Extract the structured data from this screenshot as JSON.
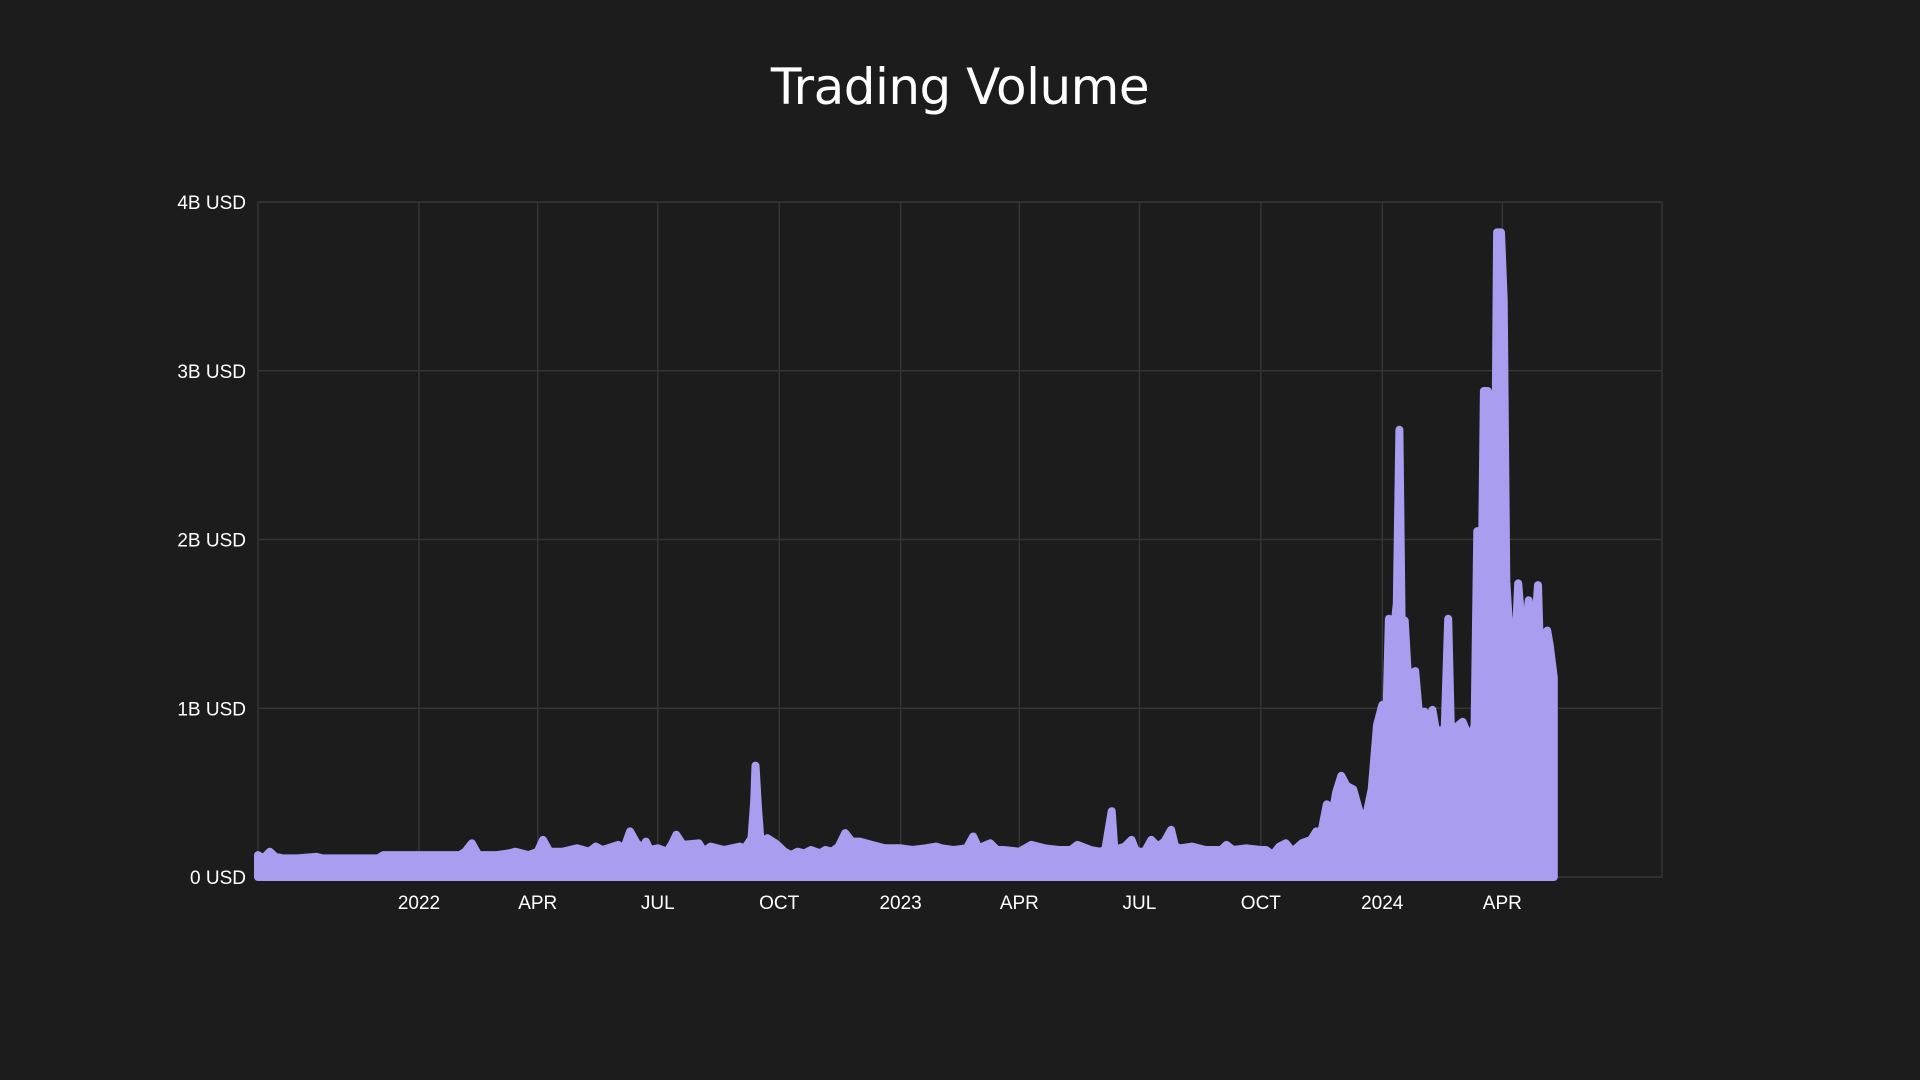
{
  "chart_data": {
    "type": "area",
    "title": "Trading Volume",
    "xlabel": "",
    "ylabel": "",
    "xlim": [
      "2021-09-01",
      "2024-07-31"
    ],
    "ylim": [
      0,
      4000000000
    ],
    "grid": true,
    "legend": "none",
    "y_ticks": [
      {
        "value": 0,
        "label": "0 USD"
      },
      {
        "value": 1000000000,
        "label": "1B USD"
      },
      {
        "value": 2000000000,
        "label": "2B USD"
      },
      {
        "value": 3000000000,
        "label": "3B USD"
      },
      {
        "value": 4000000000,
        "label": "4B USD"
      }
    ],
    "x_ticks": [
      {
        "value": "2022-01-01",
        "label": "2022"
      },
      {
        "value": "2022-04-01",
        "label": "APR"
      },
      {
        "value": "2022-07-01",
        "label": "JUL"
      },
      {
        "value": "2022-10-01",
        "label": "OCT"
      },
      {
        "value": "2023-01-01",
        "label": "2023"
      },
      {
        "value": "2023-04-01",
        "label": "APR"
      },
      {
        "value": "2023-07-01",
        "label": "JUL"
      },
      {
        "value": "2023-10-01",
        "label": "OCT"
      },
      {
        "value": "2024-01-01",
        "label": "2024"
      },
      {
        "value": "2024-04-01",
        "label": "APR"
      }
    ],
    "series": [
      {
        "color": "#a99df0",
        "points": [
          [
            "2021-09-01",
            130000000
          ],
          [
            "2021-09-05",
            110000000
          ],
          [
            "2021-09-10",
            150000000
          ],
          [
            "2021-09-14",
            120000000
          ],
          [
            "2021-09-20",
            110000000
          ],
          [
            "2021-10-01",
            110000000
          ],
          [
            "2021-10-15",
            120000000
          ],
          [
            "2021-10-20",
            110000000
          ],
          [
            "2021-11-01",
            110000000
          ],
          [
            "2021-11-15",
            110000000
          ],
          [
            "2021-12-01",
            110000000
          ],
          [
            "2021-12-05",
            130000000
          ],
          [
            "2021-12-20",
            130000000
          ],
          [
            "2022-01-01",
            130000000
          ],
          [
            "2022-01-20",
            130000000
          ],
          [
            "2022-02-01",
            130000000
          ],
          [
            "2022-02-05",
            150000000
          ],
          [
            "2022-02-10",
            200000000
          ],
          [
            "2022-02-15",
            130000000
          ],
          [
            "2022-03-01",
            130000000
          ],
          [
            "2022-03-10",
            140000000
          ],
          [
            "2022-03-15",
            150000000
          ],
          [
            "2022-03-25",
            130000000
          ],
          [
            "2022-04-01",
            150000000
          ],
          [
            "2022-04-05",
            220000000
          ],
          [
            "2022-04-10",
            150000000
          ],
          [
            "2022-04-20",
            150000000
          ],
          [
            "2022-05-01",
            170000000
          ],
          [
            "2022-05-10",
            150000000
          ],
          [
            "2022-05-15",
            180000000
          ],
          [
            "2022-05-20",
            160000000
          ],
          [
            "2022-06-01",
            190000000
          ],
          [
            "2022-06-05",
            160000000
          ],
          [
            "2022-06-10",
            270000000
          ],
          [
            "2022-06-15",
            200000000
          ],
          [
            "2022-06-20",
            170000000
          ],
          [
            "2022-06-22",
            210000000
          ],
          [
            "2022-06-25",
            160000000
          ],
          [
            "2022-07-01",
            170000000
          ],
          [
            "2022-07-08",
            150000000
          ],
          [
            "2022-07-12",
            200000000
          ],
          [
            "2022-07-15",
            250000000
          ],
          [
            "2022-07-20",
            190000000
          ],
          [
            "2022-08-01",
            200000000
          ],
          [
            "2022-08-05",
            150000000
          ],
          [
            "2022-08-10",
            180000000
          ],
          [
            "2022-08-20",
            160000000
          ],
          [
            "2022-09-01",
            180000000
          ],
          [
            "2022-09-05",
            170000000
          ],
          [
            "2022-09-10",
            230000000
          ],
          [
            "2022-09-12",
            450000000
          ],
          [
            "2022-09-13",
            660000000
          ],
          [
            "2022-09-15",
            400000000
          ],
          [
            "2022-09-17",
            200000000
          ],
          [
            "2022-09-22",
            230000000
          ],
          [
            "2022-09-28",
            200000000
          ],
          [
            "2022-10-01",
            180000000
          ],
          [
            "2022-10-05",
            150000000
          ],
          [
            "2022-10-10",
            130000000
          ],
          [
            "2022-10-15",
            150000000
          ],
          [
            "2022-10-20",
            140000000
          ],
          [
            "2022-10-25",
            160000000
          ],
          [
            "2022-11-01",
            140000000
          ],
          [
            "2022-11-05",
            160000000
          ],
          [
            "2022-11-10",
            150000000
          ],
          [
            "2022-11-15",
            180000000
          ],
          [
            "2022-11-20",
            260000000
          ],
          [
            "2022-11-25",
            210000000
          ],
          [
            "2022-12-01",
            210000000
          ],
          [
            "2022-12-10",
            190000000
          ],
          [
            "2022-12-20",
            170000000
          ],
          [
            "2023-01-01",
            170000000
          ],
          [
            "2023-01-10",
            160000000
          ],
          [
            "2023-01-20",
            170000000
          ],
          [
            "2023-01-28",
            180000000
          ],
          [
            "2023-02-01",
            170000000
          ],
          [
            "2023-02-10",
            160000000
          ],
          [
            "2023-02-20",
            170000000
          ],
          [
            "2023-02-25",
            240000000
          ],
          [
            "2023-03-01",
            170000000
          ],
          [
            "2023-03-10",
            200000000
          ],
          [
            "2023-03-15",
            160000000
          ],
          [
            "2023-03-20",
            160000000
          ],
          [
            "2023-04-01",
            150000000
          ],
          [
            "2023-04-10",
            190000000
          ],
          [
            "2023-04-20",
            170000000
          ],
          [
            "2023-05-01",
            160000000
          ],
          [
            "2023-05-10",
            160000000
          ],
          [
            "2023-05-15",
            190000000
          ],
          [
            "2023-05-25",
            160000000
          ],
          [
            "2023-06-01",
            150000000
          ],
          [
            "2023-06-05",
            160000000
          ],
          [
            "2023-06-10",
            390000000
          ],
          [
            "2023-06-12",
            160000000
          ],
          [
            "2023-06-20",
            180000000
          ],
          [
            "2023-06-25",
            220000000
          ],
          [
            "2023-06-28",
            160000000
          ],
          [
            "2023-07-01",
            150000000
          ],
          [
            "2023-07-05",
            150000000
          ],
          [
            "2023-07-10",
            220000000
          ],
          [
            "2023-07-15",
            180000000
          ],
          [
            "2023-07-20",
            210000000
          ],
          [
            "2023-07-25",
            280000000
          ],
          [
            "2023-07-28",
            180000000
          ],
          [
            "2023-08-01",
            170000000
          ],
          [
            "2023-08-10",
            180000000
          ],
          [
            "2023-08-20",
            160000000
          ],
          [
            "2023-09-01",
            160000000
          ],
          [
            "2023-09-05",
            190000000
          ],
          [
            "2023-09-10",
            160000000
          ],
          [
            "2023-09-20",
            170000000
          ],
          [
            "2023-10-01",
            160000000
          ],
          [
            "2023-10-05",
            160000000
          ],
          [
            "2023-10-10",
            130000000
          ],
          [
            "2023-10-15",
            180000000
          ],
          [
            "2023-10-20",
            200000000
          ],
          [
            "2023-10-25",
            150000000
          ],
          [
            "2023-11-01",
            200000000
          ],
          [
            "2023-11-08",
            220000000
          ],
          [
            "2023-11-12",
            270000000
          ],
          [
            "2023-11-15",
            230000000
          ],
          [
            "2023-11-20",
            430000000
          ],
          [
            "2023-11-23",
            320000000
          ],
          [
            "2023-11-27",
            500000000
          ],
          [
            "2023-12-01",
            600000000
          ],
          [
            "2023-12-05",
            540000000
          ],
          [
            "2023-12-10",
            520000000
          ],
          [
            "2023-12-15",
            380000000
          ],
          [
            "2023-12-20",
            370000000
          ],
          [
            "2023-12-24",
            520000000
          ],
          [
            "2023-12-28",
            900000000
          ],
          [
            "2024-01-01",
            1020000000
          ],
          [
            "2024-01-04",
            900000000
          ],
          [
            "2024-01-06",
            1530000000
          ],
          [
            "2024-01-09",
            1400000000
          ],
          [
            "2024-01-12",
            1620000000
          ],
          [
            "2024-01-14",
            2650000000
          ],
          [
            "2024-01-16",
            1300000000
          ],
          [
            "2024-01-18",
            1520000000
          ],
          [
            "2024-01-20",
            1250000000
          ],
          [
            "2024-01-23",
            1050000000
          ],
          [
            "2024-01-26",
            1220000000
          ],
          [
            "2024-01-29",
            950000000
          ],
          [
            "2024-02-02",
            980000000
          ],
          [
            "2024-02-05",
            900000000
          ],
          [
            "2024-02-08",
            990000000
          ],
          [
            "2024-02-11",
            850000000
          ],
          [
            "2024-02-14",
            870000000
          ],
          [
            "2024-02-17",
            800000000
          ],
          [
            "2024-02-20",
            1530000000
          ],
          [
            "2024-02-22",
            860000000
          ],
          [
            "2024-02-25",
            880000000
          ],
          [
            "2024-02-28",
            900000000
          ],
          [
            "2024-03-02",
            920000000
          ],
          [
            "2024-03-05",
            860000000
          ],
          [
            "2024-03-08",
            820000000
          ],
          [
            "2024-03-11",
            900000000
          ],
          [
            "2024-03-13",
            2050000000
          ],
          [
            "2024-03-16",
            1500000000
          ],
          [
            "2024-03-18",
            2880000000
          ],
          [
            "2024-03-21",
            2880000000
          ],
          [
            "2024-03-23",
            1900000000
          ],
          [
            "2024-03-26",
            1750000000
          ],
          [
            "2024-03-28",
            3820000000
          ],
          [
            "2024-03-31",
            3820000000
          ],
          [
            "2024-04-02",
            3420000000
          ],
          [
            "2024-04-04",
            1750000000
          ],
          [
            "2024-04-06",
            1500000000
          ],
          [
            "2024-04-08",
            1350000000
          ],
          [
            "2024-04-11",
            1380000000
          ],
          [
            "2024-04-13",
            1740000000
          ],
          [
            "2024-04-15",
            1550000000
          ],
          [
            "2024-04-17",
            1300000000
          ],
          [
            "2024-04-19",
            1470000000
          ],
          [
            "2024-04-21",
            1640000000
          ],
          [
            "2024-04-23",
            1300000000
          ],
          [
            "2024-04-26",
            1500000000
          ],
          [
            "2024-04-28",
            1730000000
          ],
          [
            "2024-04-30",
            1200000000
          ],
          [
            "2024-05-02",
            1050000000
          ],
          [
            "2024-05-05",
            1460000000
          ],
          [
            "2024-05-07",
            1370000000
          ],
          [
            "2024-05-10",
            1180000000
          ]
        ]
      }
    ]
  }
}
